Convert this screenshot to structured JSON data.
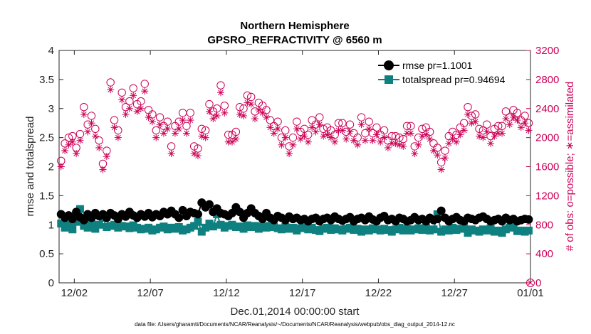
{
  "chart_data": {
    "type": "line",
    "title": "Northern Hemisphere",
    "subtitle": "GPSRO_REFRACTIVITY @ 6560 m",
    "xlabel": "Dec.01,2014 00:00:00 start",
    "ylabel": "rmse and totalspread",
    "y2label": "# of obs: o=possible; ∗=assimilated",
    "footer": "data file: /Users/gharamti/Documents/NCAR/Reanalysis/~/Documents/NCAR/Reanalysis/webpub/obs_diag_output_2014-12.nc",
    "xlim_days": [
      0.5,
      31.5
    ],
    "ylim": [
      0,
      4
    ],
    "y2lim": [
      0,
      3200
    ],
    "x_ticks": [
      {
        "day": 1.5,
        "label": "12/02"
      },
      {
        "day": 6.5,
        "label": "12/07"
      },
      {
        "day": 11.5,
        "label": "12/12"
      },
      {
        "day": 16.5,
        "label": "12/17"
      },
      {
        "day": 21.5,
        "label": "12/22"
      },
      {
        "day": 26.5,
        "label": "12/27"
      },
      {
        "day": 31.5,
        "label": "01/01"
      }
    ],
    "y_ticks": [
      {
        "value": 0,
        "label": "0"
      },
      {
        "value": 0.5,
        "label": "0.5"
      },
      {
        "value": 1,
        "label": "1"
      },
      {
        "value": 1.5,
        "label": "1.5"
      },
      {
        "value": 2,
        "label": "2"
      },
      {
        "value": 2.5,
        "label": "2.5"
      },
      {
        "value": 3,
        "label": "3"
      },
      {
        "value": 3.5,
        "label": "3.5"
      },
      {
        "value": 4,
        "label": "4"
      }
    ],
    "y2_ticks": [
      {
        "value": 0,
        "label": "0"
      },
      {
        "value": 400,
        "label": "400"
      },
      {
        "value": 800,
        "label": "800"
      },
      {
        "value": 1200,
        "label": "1200"
      },
      {
        "value": 1600,
        "label": "1600"
      },
      {
        "value": 2000,
        "label": "2000"
      },
      {
        "value": 2400,
        "label": "2400"
      },
      {
        "value": 2800,
        "label": "2800"
      },
      {
        "value": 3200,
        "label": "3200"
      }
    ],
    "series": [
      {
        "name": "rmse",
        "legend": "rmse pr=1.1001",
        "color": "#000000",
        "marker": "circle",
        "axis": "left",
        "x": [
          0.63,
          0.88,
          1.13,
          1.38,
          1.63,
          1.88,
          2.13,
          2.38,
          2.63,
          2.88,
          3.13,
          3.38,
          3.63,
          3.88,
          4.13,
          4.38,
          4.63,
          4.88,
          5.13,
          5.38,
          5.63,
          5.88,
          6.13,
          6.38,
          6.63,
          6.88,
          7.13,
          7.38,
          7.63,
          7.88,
          8.13,
          8.38,
          8.63,
          8.88,
          9.13,
          9.38,
          9.63,
          9.88,
          10.13,
          10.38,
          10.63,
          10.88,
          11.13,
          11.38,
          11.63,
          11.88,
          12.13,
          12.38,
          12.63,
          12.88,
          13.13,
          13.38,
          13.63,
          13.88,
          14.13,
          14.38,
          14.63,
          14.88,
          15.13,
          15.38,
          15.63,
          15.88,
          16.13,
          16.38,
          16.63,
          16.88,
          17.13,
          17.38,
          17.63,
          17.88,
          18.13,
          18.38,
          18.63,
          18.88,
          19.13,
          19.38,
          19.63,
          19.88,
          20.13,
          20.38,
          20.63,
          20.88,
          21.13,
          21.38,
          21.63,
          21.88,
          22.13,
          22.38,
          22.63,
          22.88,
          23.13,
          23.38,
          23.63,
          23.88,
          24.13,
          24.38,
          24.63,
          24.88,
          25.13,
          25.38,
          25.63,
          25.88,
          26.13,
          26.38,
          26.63,
          26.88,
          27.13,
          27.38,
          27.63,
          27.88,
          28.13,
          28.38,
          28.63,
          28.88,
          29.13,
          29.38,
          29.63,
          29.88,
          30.13,
          30.38,
          30.63,
          30.88,
          31.13,
          31.38
        ],
        "values": [
          1.18,
          1.12,
          1.16,
          1.1,
          1.22,
          1.13,
          1.08,
          1.18,
          1.12,
          1.2,
          1.15,
          1.18,
          1.12,
          1.2,
          1.16,
          1.1,
          1.18,
          1.14,
          1.22,
          1.16,
          1.12,
          1.18,
          1.14,
          1.2,
          1.13,
          1.18,
          1.15,
          1.22,
          1.18,
          1.24,
          1.18,
          1.12,
          1.25,
          1.15,
          1.22,
          1.2,
          1.18,
          1.38,
          1.3,
          1.35,
          1.22,
          1.28,
          1.2,
          1.18,
          1.15,
          1.2,
          1.3,
          1.22,
          1.12,
          1.2,
          1.28,
          1.2,
          1.15,
          1.1,
          1.2,
          1.12,
          1.08,
          1.15,
          1.12,
          1.08,
          1.14,
          1.1,
          1.12,
          1.08,
          1.1,
          1.06,
          1.1,
          1.12,
          1.06,
          1.1,
          1.12,
          1.08,
          1.14,
          1.1,
          1.07,
          1.1,
          1.13,
          1.06,
          1.1,
          1.12,
          1.08,
          1.14,
          1.09,
          1.06,
          1.12,
          1.15,
          1.08,
          1.1,
          1.06,
          1.12,
          1.1,
          1.06,
          1.08,
          1.13,
          1.08,
          1.1,
          1.06,
          1.12,
          1.08,
          1.1,
          1.24,
          1.12,
          1.06,
          1.1,
          1.13,
          1.08,
          1.06,
          1.12,
          1.1,
          1.08,
          1.12,
          1.14,
          1.1,
          1.06,
          1.08,
          1.1,
          1.06,
          1.12,
          1.08,
          1.1,
          1.06,
          1.08,
          1.1,
          1.09
        ]
      },
      {
        "name": "totalspread",
        "legend": "totalspread pr=0.94694",
        "color": "#0f8080",
        "marker": "square",
        "axis": "left",
        "x": [
          0.63,
          0.88,
          1.13,
          1.38,
          1.63,
          1.88,
          2.13,
          2.38,
          2.63,
          2.88,
          3.13,
          3.38,
          3.63,
          3.88,
          4.13,
          4.38,
          4.63,
          4.88,
          5.13,
          5.38,
          5.63,
          5.88,
          6.13,
          6.38,
          6.63,
          6.88,
          7.13,
          7.38,
          7.63,
          7.88,
          8.13,
          8.38,
          8.63,
          8.88,
          9.13,
          9.38,
          9.63,
          9.88,
          10.13,
          10.38,
          10.63,
          10.88,
          11.13,
          11.38,
          11.63,
          11.88,
          12.13,
          12.38,
          12.63,
          12.88,
          13.13,
          13.38,
          13.63,
          13.88,
          14.13,
          14.38,
          14.63,
          14.88,
          15.13,
          15.38,
          15.63,
          15.88,
          16.13,
          16.38,
          16.63,
          16.88,
          17.13,
          17.38,
          17.63,
          17.88,
          18.13,
          18.38,
          18.63,
          18.88,
          19.13,
          19.38,
          19.63,
          19.88,
          20.13,
          20.38,
          20.63,
          20.88,
          21.13,
          21.38,
          21.63,
          21.88,
          22.13,
          22.38,
          22.63,
          22.88,
          23.13,
          23.38,
          23.63,
          23.88,
          24.13,
          24.38,
          24.63,
          24.88,
          25.13,
          25.38,
          25.63,
          25.88,
          26.13,
          26.38,
          26.63,
          26.88,
          27.13,
          27.38,
          27.63,
          27.88,
          28.13,
          28.38,
          28.63,
          28.88,
          29.13,
          29.38,
          29.63,
          29.88,
          30.13,
          30.38,
          30.63,
          30.88,
          31.13,
          31.38
        ],
        "values": [
          1.02,
          0.95,
          1.0,
          0.92,
          1.05,
          1.27,
          0.98,
          0.95,
          1.02,
          0.93,
          1.0,
          1.12,
          0.96,
          0.98,
          1.0,
          0.95,
          0.98,
          0.97,
          0.94,
          0.99,
          0.95,
          0.92,
          0.93,
          0.95,
          0.9,
          0.92,
          0.95,
          0.97,
          0.92,
          0.95,
          0.93,
          0.96,
          0.9,
          0.92,
          0.95,
          0.98,
          1.05,
          0.88,
          0.95,
          1.02,
          0.97,
          1.18,
          1.0,
          0.95,
          0.98,
          1.0,
          0.96,
          0.97,
          0.93,
          0.99,
          0.96,
          0.98,
          0.93,
          0.97,
          0.95,
          0.98,
          0.96,
          0.94,
          0.92,
          0.96,
          0.93,
          0.95,
          0.9,
          0.94,
          0.96,
          0.92,
          0.95,
          0.91,
          0.89,
          0.93,
          0.95,
          0.91,
          0.94,
          0.92,
          0.9,
          0.93,
          0.95,
          0.91,
          0.93,
          0.88,
          0.92,
          0.9,
          0.94,
          0.92,
          0.9,
          0.93,
          0.91,
          0.88,
          0.92,
          0.95,
          0.9,
          0.93,
          0.9,
          0.92,
          0.94,
          0.91,
          0.95,
          0.9,
          0.92,
          1.18,
          0.88,
          0.92,
          0.9,
          0.95,
          0.91,
          0.93,
          0.96,
          0.86,
          0.92,
          0.9,
          0.88,
          0.92,
          0.9,
          0.94,
          0.88,
          0.9,
          0.86,
          0.92,
          0.95,
          0.97,
          0.89,
          0.9,
          0.88,
          0.9
        ]
      }
    ],
    "obs_possible": {
      "name": "possible",
      "marker": "circle-open",
      "color": "#cc0055",
      "axis": "right",
      "x": [
        0.63,
        0.88,
        1.13,
        1.38,
        1.63,
        1.88,
        2.13,
        2.38,
        2.63,
        2.88,
        3.13,
        3.38,
        3.63,
        3.88,
        4.13,
        4.38,
        4.63,
        4.88,
        5.13,
        5.38,
        5.63,
        5.88,
        6.13,
        6.38,
        6.63,
        6.88,
        7.13,
        7.38,
        7.63,
        7.88,
        8.13,
        8.38,
        8.63,
        8.88,
        9.13,
        9.38,
        9.63,
        9.88,
        10.13,
        10.38,
        10.63,
        10.88,
        11.13,
        11.38,
        11.63,
        11.88,
        12.13,
        12.38,
        12.63,
        12.88,
        13.13,
        13.38,
        13.63,
        13.88,
        14.13,
        14.38,
        14.63,
        14.88,
        15.13,
        15.38,
        15.63,
        15.88,
        16.13,
        16.38,
        16.63,
        16.88,
        17.13,
        17.38,
        17.63,
        17.88,
        18.13,
        18.38,
        18.63,
        18.88,
        19.13,
        19.38,
        19.63,
        19.88,
        20.13,
        20.38,
        20.63,
        20.88,
        21.13,
        21.38,
        21.63,
        21.88,
        22.13,
        22.38,
        22.63,
        22.88,
        23.13,
        23.38,
        23.63,
        23.88,
        24.13,
        24.38,
        24.63,
        24.88,
        25.13,
        25.38,
        25.63,
        25.88,
        26.13,
        26.38,
        26.63,
        26.88,
        27.13,
        27.38,
        27.63,
        27.88,
        28.13,
        28.38,
        28.63,
        28.88,
        29.13,
        29.38,
        29.63,
        29.88,
        30.13,
        30.38,
        30.63,
        30.88,
        31.13,
        31.38
      ],
      "values": [
        1680,
        1920,
        2000,
        2020,
        1860,
        2050,
        2420,
        2180,
        2300,
        2120,
        1960,
        1640,
        1820,
        2760,
        2240,
        2100,
        2620,
        2420,
        2500,
        2680,
        2460,
        2500,
        2740,
        2380,
        2320,
        2100,
        2280,
        2160,
        2220,
        1880,
        2160,
        2220,
        2340,
        2160,
        2340,
        1880,
        1850,
        2120,
        2100,
        2460,
        2360,
        2400,
        2720,
        2440,
        2040,
        2040,
        2080,
        2420,
        2400,
        2580,
        2560,
        2360,
        2480,
        2440,
        2380,
        2240,
        2160,
        2220,
        2000,
        2100,
        1880,
        2000,
        2220,
        2080,
        2120,
        2040,
        2240,
        2180,
        2280,
        2120,
        2140,
        2100,
        2040,
        2200,
        2200,
        2080,
        2180,
        2060,
        2000,
        2280,
        2060,
        2220,
        2060,
        2140,
        2040,
        2100,
        1960,
        2020,
        2020,
        2000,
        1980,
        2160,
        2160,
        1880,
        2000,
        2120,
        2140,
        2080,
        1920,
        1860,
        1660,
        1820,
        2020,
        2080,
        2040,
        2140,
        2200,
        2420,
        2300,
        2320,
        2120,
        2100,
        2180,
        2020,
        2120,
        2160,
        2160,
        2360,
        2280,
        2380,
        2340,
        2240,
        2300,
        2200
      ]
    },
    "obs_assimilated": {
      "name": "assimilated",
      "marker": "asterisk",
      "color": "#cc0055",
      "axis": "right",
      "x": [
        0.63,
        0.88,
        1.13,
        1.38,
        1.63,
        1.88,
        2.13,
        2.38,
        2.63,
        2.88,
        3.13,
        3.38,
        3.63,
        3.88,
        4.13,
        4.38,
        4.63,
        4.88,
        5.13,
        5.38,
        5.63,
        5.88,
        6.13,
        6.38,
        6.63,
        6.88,
        7.13,
        7.38,
        7.63,
        7.88,
        8.13,
        8.38,
        8.63,
        8.88,
        9.13,
        9.38,
        9.63,
        9.88,
        10.13,
        10.38,
        10.63,
        10.88,
        11.13,
        11.38,
        11.63,
        11.88,
        12.13,
        12.38,
        12.63,
        12.88,
        13.13,
        13.38,
        13.63,
        13.88,
        14.13,
        14.38,
        14.63,
        14.88,
        15.13,
        15.38,
        15.63,
        15.88,
        16.13,
        16.38,
        16.63,
        16.88,
        17.13,
        17.38,
        17.63,
        17.88,
        18.13,
        18.38,
        18.63,
        18.88,
        19.13,
        19.38,
        19.63,
        19.88,
        20.13,
        20.38,
        20.63,
        20.88,
        21.13,
        21.38,
        21.63,
        21.88,
        22.13,
        22.38,
        22.63,
        22.88,
        23.13,
        23.38,
        23.63,
        23.88,
        24.13,
        24.38,
        24.63,
        24.88,
        25.13,
        25.38,
        25.63,
        25.88,
        26.13,
        26.38,
        26.63,
        26.88,
        27.13,
        27.38,
        27.63,
        27.88,
        28.13,
        28.38,
        28.63,
        28.88,
        29.13,
        29.38,
        29.63,
        29.88,
        30.13,
        30.38,
        30.63,
        30.88,
        31.13,
        31.38
      ],
      "values": [
        1600,
        1820,
        1900,
        1940,
        1780,
        1960,
        2320,
        2080,
        2200,
        2020,
        1860,
        1560,
        1740,
        2660,
        2140,
        2000,
        2520,
        2320,
        2400,
        2580,
        2360,
        2400,
        2640,
        2280,
        2220,
        2000,
        2180,
        2060,
        2120,
        1780,
        2060,
        2120,
        2240,
        2060,
        2240,
        1780,
        1750,
        2020,
        2000,
        2360,
        2260,
        2300,
        2620,
        2340,
        1940,
        1940,
        1980,
        2320,
        2300,
        2480,
        2460,
        2260,
        2380,
        2340,
        2280,
        2140,
        2060,
        2120,
        1900,
        2000,
        1780,
        1900,
        2120,
        1980,
        2020,
        1940,
        2140,
        2080,
        2180,
        2020,
        2040,
        2000,
        1940,
        2100,
        2100,
        1980,
        2080,
        1960,
        1900,
        2180,
        1960,
        2120,
        1960,
        2040,
        1940,
        2000,
        1860,
        1920,
        1920,
        1900,
        1880,
        2060,
        2060,
        1780,
        1900,
        2020,
        2040,
        1980,
        1820,
        1760,
        1560,
        1720,
        1920,
        1980,
        1940,
        2040,
        2100,
        2320,
        2200,
        2220,
        2020,
        2000,
        2080,
        1920,
        2020,
        2060,
        2060,
        2260,
        2180,
        2280,
        2240,
        2140,
        2200,
        2100
      ]
    }
  }
}
